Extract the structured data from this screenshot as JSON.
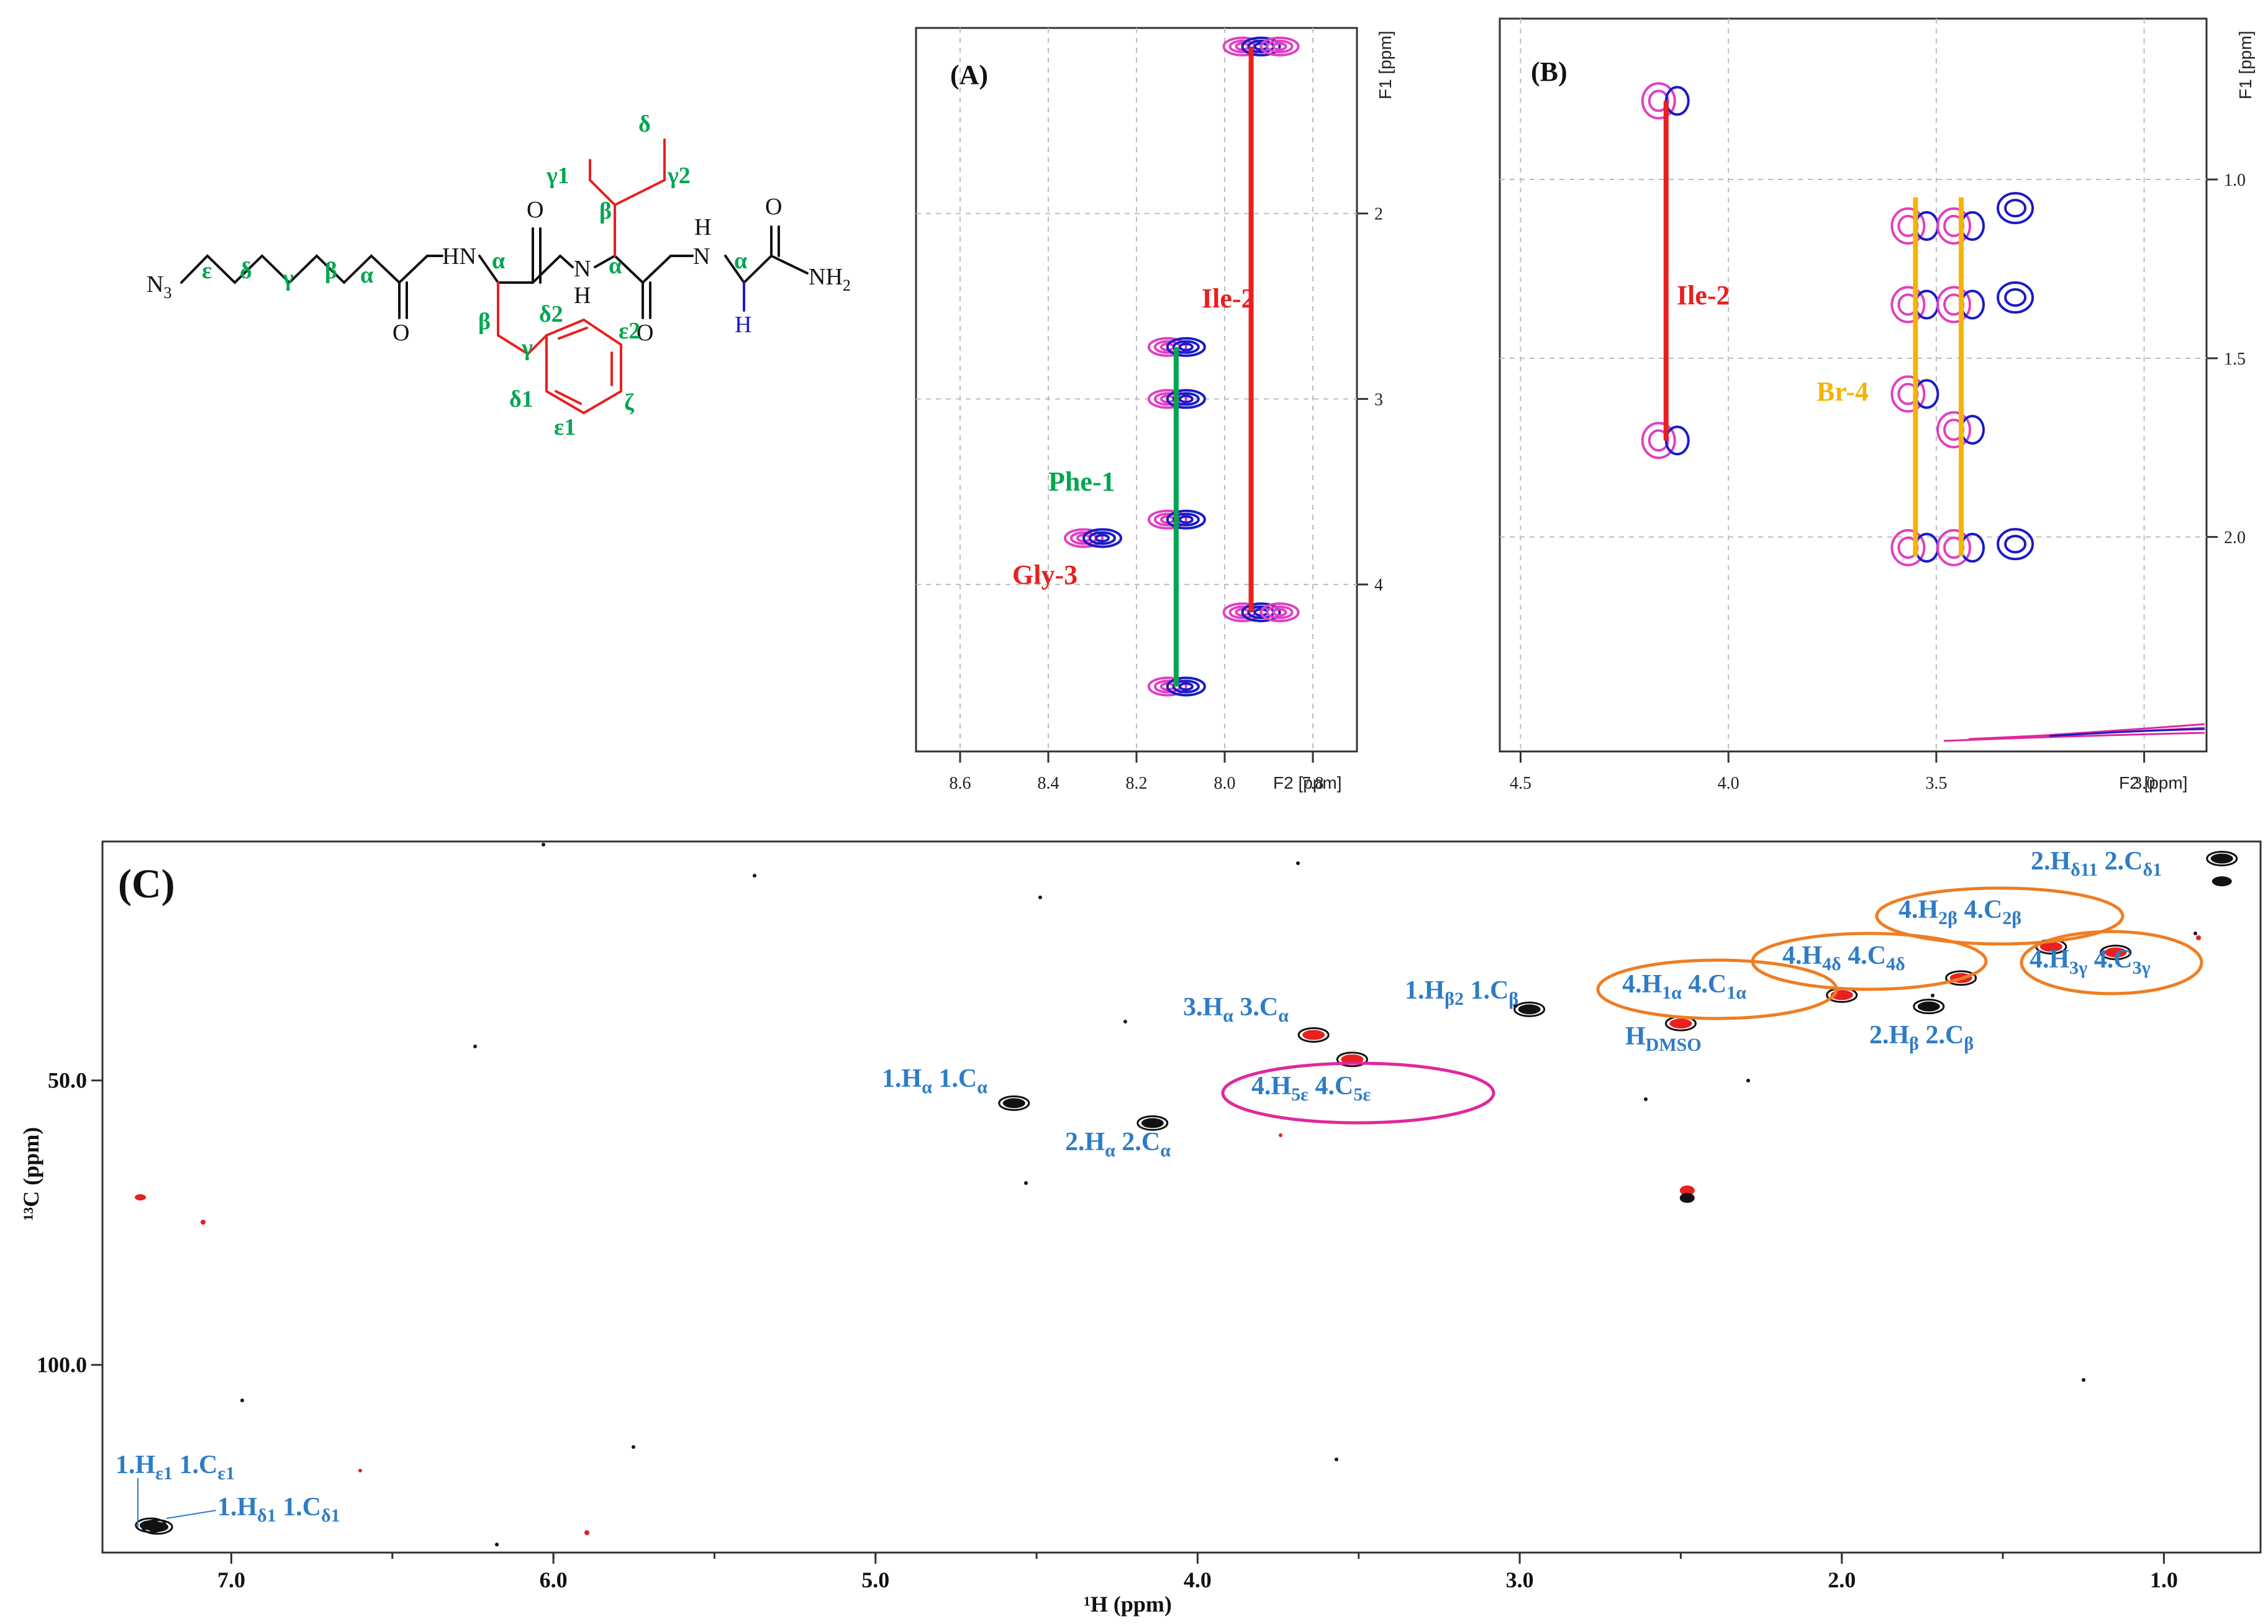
{
  "colors": {
    "red": "#e8201f",
    "green": "#00a650",
    "blue": "#2e7cc6",
    "orange": "#ef7d22",
    "magenta": "#e0289b",
    "navy": "#1a1ac8",
    "pink": "#e040c0",
    "yellow": "#f4b400",
    "black": "#111111"
  },
  "structure": {
    "n3": "N",
    "n3_sub": "3",
    "chain_labels": [
      "ε",
      "δ",
      "γ",
      "β",
      "α"
    ],
    "hn1": "HN",
    "alpha1": "α",
    "beta1": "β",
    "gamma1": "γ",
    "o_carbonyl1": "O",
    "o_amide1": "O",
    "o_amide2": "O",
    "o_amide3": "O",
    "nh_bottom": "N",
    "nh_bottom_h": "H",
    "nh_top_h": "H",
    "nh_top_n": "N",
    "alpha2": "α",
    "alpha3": "α",
    "ile_beta": "β",
    "ile_gamma1": "γ1",
    "ile_gamma2": "γ2",
    "ile_delta": "δ",
    "gly_h": "H",
    "nh2": "NH",
    "nh2_sub": "2",
    "ring_delta2": "δ2",
    "ring_epsilon2": "ε2",
    "ring_delta1": "δ1",
    "ring_epsilon1": "ε1",
    "ring_zeta": "ζ"
  },
  "panel_a": {
    "label": "(A)",
    "f1_axis_label": "F1 [ppm]",
    "f2_axis_label": "F2 [ppm]",
    "x_ticks": [
      "8.6",
      "8.4",
      "8.2",
      "8.0",
      "7.8"
    ],
    "y_ticks": [
      "2",
      "3",
      "4"
    ],
    "annotations": {
      "ile": "Ile-2",
      "phe": "Phe-1",
      "gly": "Gly-3"
    }
  },
  "panel_b": {
    "label": "(B)",
    "f1_axis_label": "F1 [ppm]",
    "f2_axis_label": "F2 [ppm]",
    "x_ticks": [
      "4.5",
      "4.0",
      "3.5",
      "3.0"
    ],
    "y_ticks": [
      "1.0",
      "1.5",
      "2.0"
    ],
    "annotations": {
      "ile": "Ile-2",
      "br": "Br-4"
    }
  },
  "panel_c": {
    "label": "(C)",
    "x_axis_label": "¹H (ppm)",
    "y_axis_label": "¹³C (ppm)",
    "x_ticks": [
      "7.0",
      "6.0",
      "5.0",
      "4.0",
      "3.0",
      "2.0",
      "1.0"
    ],
    "y_ticks": [
      "50.0",
      "100.0"
    ]
  },
  "chart_data": [
    {
      "type": "scatter",
      "title": "(A)",
      "xlabel": "F2 [ppm]",
      "ylabel": "F1 [ppm]",
      "xlim": [
        8.7,
        7.7
      ],
      "ylim": [
        1.0,
        4.9
      ],
      "series": [
        {
          "name": "Ile-2",
          "points": [
            [
              7.94,
              1.1
            ],
            [
              7.94,
              4.15
            ]
          ]
        },
        {
          "name": "Phe-1",
          "points": [
            [
              8.11,
              2.72
            ],
            [
              8.11,
              3.0
            ],
            [
              8.11,
              3.65
            ],
            [
              8.11,
              4.55
            ]
          ]
        },
        {
          "name": "Gly-3",
          "points": [
            [
              8.3,
              3.75
            ]
          ]
        }
      ]
    },
    {
      "type": "scatter",
      "title": "(B)",
      "xlabel": "F2 [ppm]",
      "ylabel": "F1 [ppm]",
      "xlim": [
        4.55,
        2.85
      ],
      "ylim": [
        0.55,
        2.6
      ],
      "series": [
        {
          "name": "Ile-2",
          "points": [
            [
              4.15,
              0.78
            ],
            [
              4.15,
              1.73
            ]
          ]
        },
        {
          "name": "Br-4",
          "points": [
            [
              3.55,
              1.13
            ],
            [
              3.55,
              1.35
            ],
            [
              3.55,
              1.6
            ],
            [
              3.55,
              2.03
            ],
            [
              3.44,
              1.13
            ],
            [
              3.44,
              1.35
            ],
            [
              3.44,
              1.7
            ],
            [
              3.44,
              2.03
            ]
          ]
        }
      ]
    },
    {
      "type": "scatter",
      "title": "(C)",
      "xlabel": "¹H (ppm)",
      "ylabel": "¹³C (ppm)",
      "xlim": [
        7.4,
        0.7
      ],
      "ylim": [
        8,
        133
      ],
      "cross_peaks": [
        {
          "label": "1.Hε1 1.Cε1",
          "h": 7.25,
          "c": 128.2
        },
        {
          "label": "1.Hδ1 1.Cδ1",
          "h": 7.23,
          "c": 128.5
        },
        {
          "label": "1.Hα 1.Cα",
          "h": 4.57,
          "c": 54.0
        },
        {
          "label": "2.Hα 2.Cα",
          "h": 4.14,
          "c": 57.5
        },
        {
          "label": "3.Hα 3.Cα",
          "h": 3.64,
          "c": 42.0
        },
        {
          "label": "4.H5ε 4.C5ε",
          "h": 3.52,
          "c": 46.3
        },
        {
          "label": "1.Hβ2 1.Cβ",
          "h": 2.97,
          "c": 37.5
        },
        {
          "label": "4.H1α 4.C1α",
          "h": 2.0,
          "c": 35.0
        },
        {
          "label": "HDMSO",
          "h": 2.5,
          "c": 40.0
        },
        {
          "label": "2.Hβ 2.Cβ",
          "h": 1.73,
          "c": 37.0
        },
        {
          "label": "4.H4δ 4.C4δ",
          "h": 1.63,
          "c": 32.0
        },
        {
          "label": "4.H2β 4.C2β",
          "h": 1.35,
          "c": 26.5
        },
        {
          "label": "4.H3γ 4.C3γ",
          "h": 1.15,
          "c": 27.5
        },
        {
          "label": "2.Hδ11 2.Cδ1",
          "h": 0.82,
          "c": 11.0
        }
      ]
    }
  ]
}
